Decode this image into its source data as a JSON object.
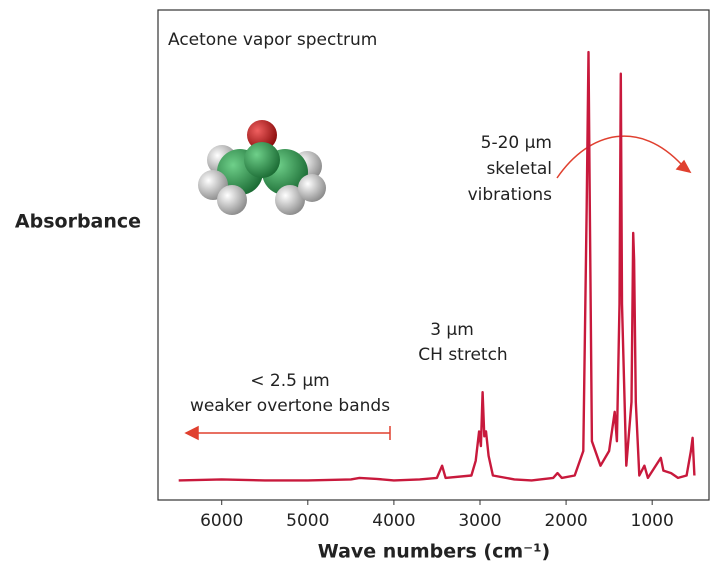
{
  "chart_data": {
    "type": "line",
    "title": "Acetone vapor spectrum",
    "ylabel": "Absorbance",
    "xlabel": "Wave numbers (cm⁻¹)",
    "annotations": [
      [
        "5-20 µm",
        "skeletal",
        "vibrations"
      ],
      [
        "3 µm",
        "CH stretch"
      ],
      [
        "< 2.5 µm",
        "weaker overtone bands"
      ]
    ],
    "xlim": [
      6740,
      340
    ],
    "xticks": [
      6000,
      5000,
      4000,
      3000,
      2000,
      1000
    ],
    "ylim": [
      0,
      1
    ],
    "series": [
      {
        "name": "Acetone vapor",
        "color": "#c8193c",
        "x": [
          6500,
          6000,
          5500,
          5000,
          4500,
          4400,
          4200,
          4000,
          3700,
          3500,
          3440,
          3400,
          3100,
          3050,
          3010,
          2990,
          2970,
          2950,
          2930,
          2900,
          2850,
          2600,
          2400,
          2150,
          2100,
          2050,
          1900,
          1800,
          1760,
          1740,
          1725,
          1700,
          1600,
          1500,
          1435,
          1410,
          1380,
          1365,
          1350,
          1300,
          1240,
          1220,
          1210,
          1190,
          1150,
          1090,
          1050,
          900,
          870,
          780,
          700,
          600,
          550,
          530,
          510
        ],
        "values": [
          0.04,
          0.042,
          0.04,
          0.04,
          0.042,
          0.045,
          0.043,
          0.04,
          0.042,
          0.045,
          0.07,
          0.045,
          0.05,
          0.08,
          0.14,
          0.11,
          0.22,
          0.13,
          0.14,
          0.09,
          0.05,
          0.042,
          0.04,
          0.045,
          0.055,
          0.045,
          0.05,
          0.1,
          0.6,
          0.914,
          0.6,
          0.12,
          0.07,
          0.1,
          0.18,
          0.12,
          0.4,
          0.87,
          0.4,
          0.07,
          0.2,
          0.545,
          0.49,
          0.2,
          0.05,
          0.07,
          0.045,
          0.086,
          0.06,
          0.055,
          0.045,
          0.05,
          0.1,
          0.127,
          0.05
        ]
      }
    ]
  }
}
